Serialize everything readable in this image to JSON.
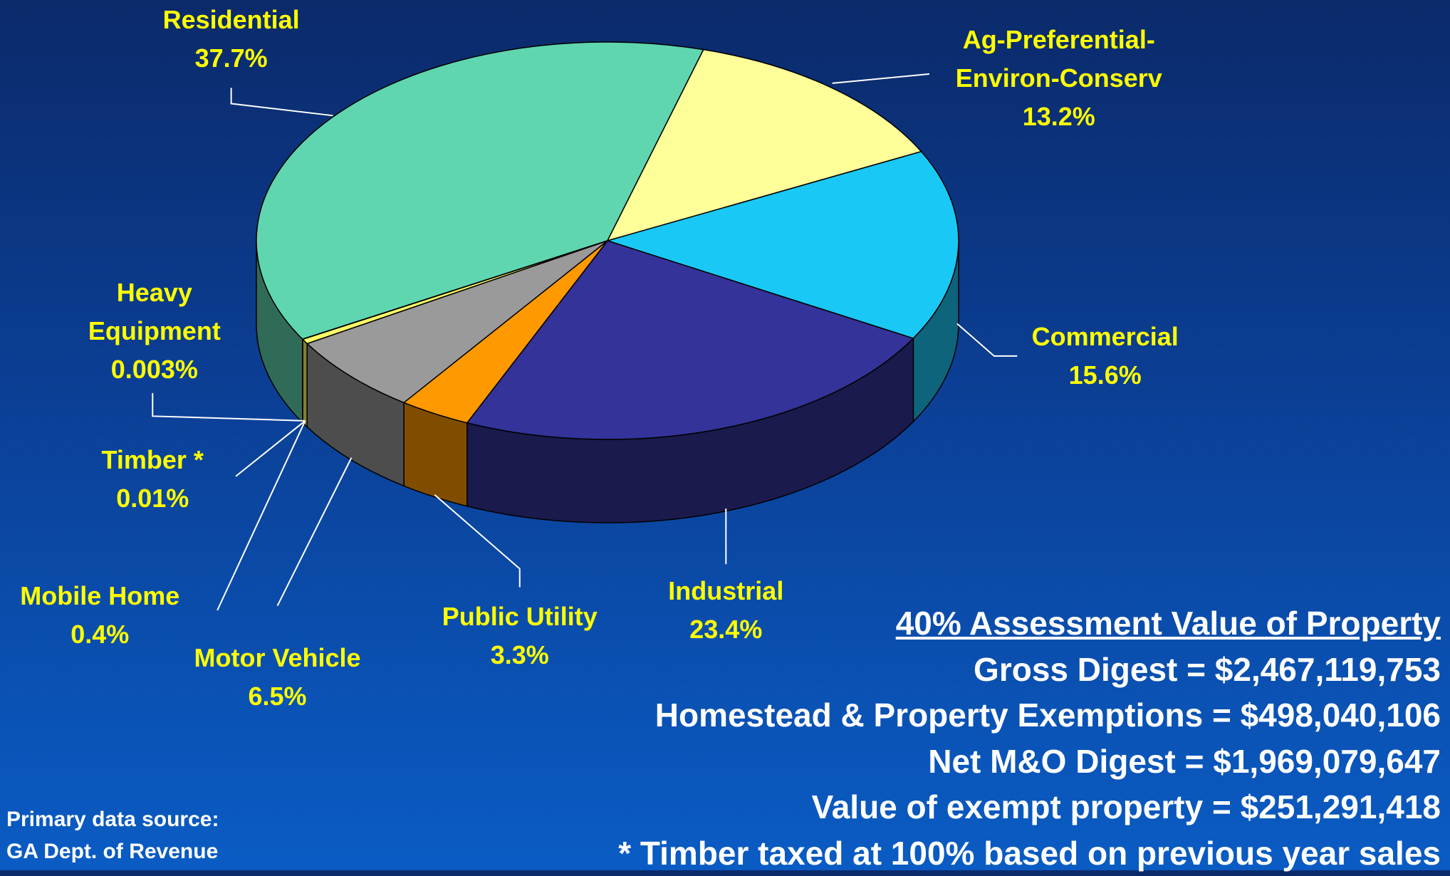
{
  "chart_data": {
    "type": "pie3d",
    "categories": [
      "Residential",
      "Ag-Preferential-Environ-Conserv",
      "Commercial",
      "Industrial",
      "Public Utility",
      "Motor Vehicle",
      "Mobile Home",
      "Timber *",
      "Heavy Equipment"
    ],
    "values": [
      37.7,
      13.2,
      15.6,
      23.4,
      3.3,
      6.5,
      0.4,
      0.01,
      0.003
    ],
    "value_labels": [
      "37.7%",
      "13.2%",
      "15.6%",
      "23.4%",
      "3.3%",
      "6.5%",
      "0.4%",
      "0.01%",
      "0.003%"
    ],
    "colors": [
      "#5fd6b0",
      "#ffff99",
      "#19c8f5",
      "#333399",
      "#ff9900",
      "#9a9a9a",
      "#ffff66",
      "#cccc33",
      "#eeee88"
    ]
  },
  "info": {
    "title": "40% Assessment Value of Property",
    "lines": [
      "Gross Digest = $2,467,119,753",
      "Homestead & Property Exemptions = $498,040,106",
      "Net M&O Digest = $1,969,079,647",
      "Value of exempt property = $251,291,418",
      "* Timber taxed at 100% based on previous year sales"
    ]
  },
  "source": [
    "Primary data source:",
    "GA Dept. of Revenue"
  ]
}
